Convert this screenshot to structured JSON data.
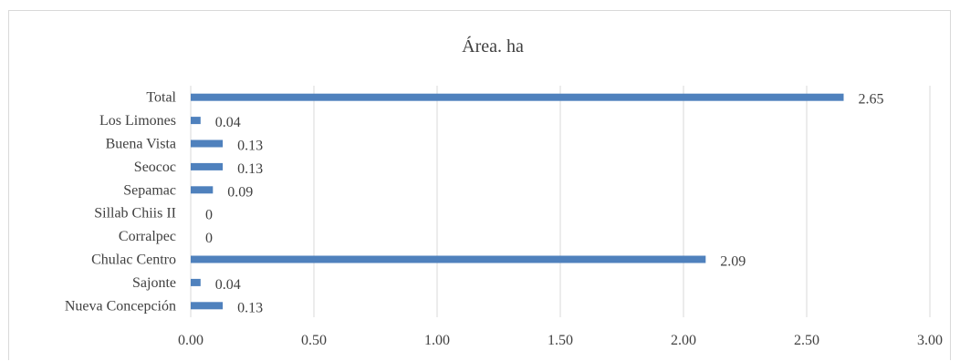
{
  "chart_data": {
    "type": "bar",
    "orientation": "horizontal",
    "title": "Área. ha",
    "categories": [
      "Total",
      "Los Limones",
      "Buena Vista",
      "Seococ",
      "Sepamac",
      "Sillab Chiis II",
      "Corralpec",
      "Chulac Centro",
      "Sajonte",
      "Nueva Concepción"
    ],
    "values": [
      2.65,
      0.04,
      0.13,
      0.13,
      0.09,
      0,
      0,
      2.09,
      0.04,
      0.13
    ],
    "value_labels": [
      "2.65",
      "0.04",
      "0.13",
      "0.13",
      "0.09",
      "0",
      "0",
      "2.09",
      "0.04",
      "0.13"
    ],
    "xlim": [
      0,
      3
    ],
    "xticks": [
      "0.00",
      "0.50",
      "1.00",
      "1.50",
      "2.00",
      "2.50",
      "3.00"
    ],
    "grid": true,
    "bar_color": "#4f81bd",
    "grid_color": "#d9d9d9",
    "text_color": "#404040"
  }
}
